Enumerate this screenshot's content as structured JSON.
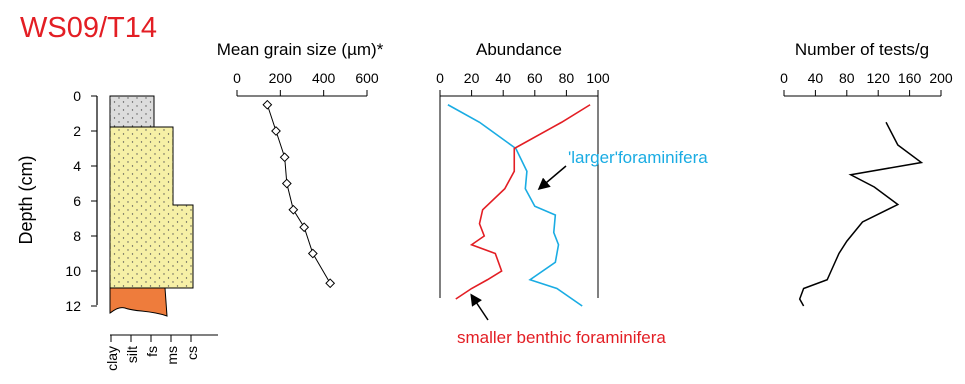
{
  "title": "WS09/T14",
  "colors": {
    "title": "#e31e24",
    "larger": "#1aace3",
    "smaller": "#e31e24",
    "sand_fill": "#f6f0a6",
    "upper_fill": "#dcdcdc",
    "base_fill": "#ee7c3c"
  },
  "lithology": {
    "ylabel": "Depth (cm)",
    "yticks": [
      "0",
      "2",
      "4",
      "6",
      "8",
      "10",
      "12"
    ],
    "grain_classes": [
      "clay",
      "silt",
      "fs",
      "ms",
      "cs"
    ]
  },
  "chart_data": [
    {
      "type": "line",
      "title": "Mean grain size (µm)*",
      "xticks": [
        "0",
        "200",
        "400",
        "600"
      ],
      "xlim": [
        0,
        600
      ],
      "ylim": [
        0,
        12
      ],
      "series": [
        {
          "x": [
            140,
            180,
            220,
            230,
            260,
            310,
            350,
            430
          ],
          "y": [
            0.5,
            2,
            3.5,
            5,
            6.5,
            7.5,
            9,
            10.7
          ]
        }
      ]
    },
    {
      "type": "line",
      "title": "Abundance",
      "xticks": [
        "0",
        "20",
        "40",
        "60",
        "80",
        "100"
      ],
      "xlim": [
        0,
        100
      ],
      "ylim": [
        0,
        12
      ],
      "series": [
        {
          "name": "'larger'foraminifera",
          "x": [
            5,
            25,
            48,
            55,
            54,
            60,
            73,
            72,
            75,
            73,
            57,
            74,
            90
          ],
          "y": [
            0.5,
            1.5,
            3,
            4.3,
            5.3,
            6.3,
            6.8,
            7.8,
            8.5,
            9.5,
            10.5,
            11,
            12
          ]
        },
        {
          "name": "smaller benthic foraminifera",
          "x": [
            95,
            77,
            47,
            47,
            41,
            27,
            25,
            28,
            20,
            35,
            39,
            30,
            20,
            10
          ],
          "y": [
            0.5,
            1.5,
            3,
            4.3,
            5.3,
            6.5,
            7.3,
            8,
            8.5,
            9,
            10,
            10.5,
            11,
            11.6
          ]
        }
      ]
    },
    {
      "type": "line",
      "title": "Number of tests/g",
      "xticks": [
        "0",
        "40",
        "80",
        "120",
        "160",
        "200"
      ],
      "xlim": [
        0,
        200
      ],
      "ylim": [
        0,
        12
      ],
      "series": [
        {
          "x": [
            130,
            145,
            175,
            85,
            115,
            145,
            100,
            80,
            70,
            60,
            55,
            25,
            20,
            25
          ],
          "y": [
            1.5,
            2.8,
            3.8,
            4.5,
            5.2,
            6.2,
            7.2,
            8.3,
            9,
            10,
            10.5,
            11,
            11.6,
            12
          ]
        }
      ]
    }
  ],
  "annotations": {
    "larger": "'larger'foraminifera",
    "smaller": "smaller benthic foraminifera"
  }
}
